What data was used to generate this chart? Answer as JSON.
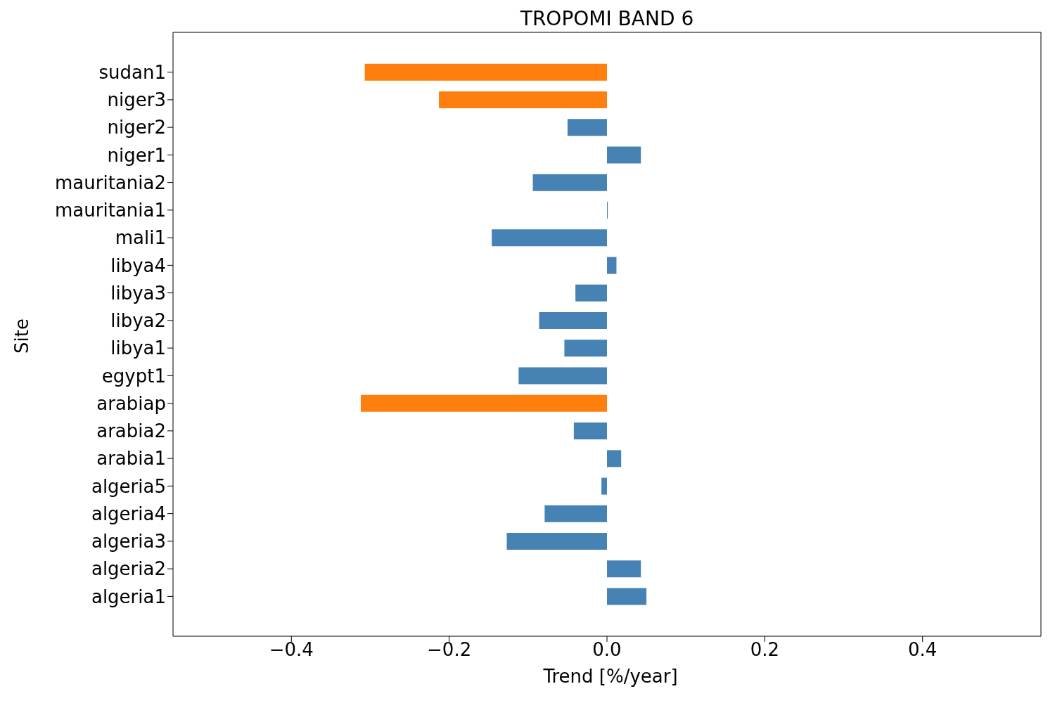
{
  "chart_data": {
    "type": "bar",
    "orientation": "horizontal",
    "title": "TROPOMI BAND 6",
    "xlabel": "Trend [%/year]",
    "ylabel": "Site",
    "categories": [
      "sudan1",
      "niger3",
      "niger2",
      "niger1",
      "mauritania2",
      "mauritania1",
      "mali1",
      "libya4",
      "libya3",
      "libya2",
      "libya1",
      "egypt1",
      "arabiap",
      "arabia2",
      "arabia1",
      "algeria5",
      "algeria4",
      "algeria3",
      "algeria2",
      "algeria1"
    ],
    "values": [
      -0.307,
      -0.213,
      -0.05,
      0.043,
      -0.094,
      0.001,
      -0.146,
      0.012,
      -0.04,
      -0.086,
      -0.054,
      -0.112,
      -0.312,
      -0.042,
      0.018,
      -0.007,
      -0.079,
      -0.127,
      0.043,
      0.05
    ],
    "colors": [
      "#ff7f0e",
      "#ff7f0e",
      "#4682b4",
      "#4682b4",
      "#4682b4",
      "#4682b4",
      "#4682b4",
      "#4682b4",
      "#4682b4",
      "#4682b4",
      "#4682b4",
      "#4682b4",
      "#ff7f0e",
      "#4682b4",
      "#4682b4",
      "#4682b4",
      "#4682b4",
      "#4682b4",
      "#4682b4",
      "#4682b4"
    ],
    "xlim": [
      -0.55,
      0.55
    ],
    "xticks": [
      {
        "value": -0.4,
        "label": "−0.4"
      },
      {
        "value": -0.2,
        "label": "−0.2"
      },
      {
        "value": 0,
        "label": "0.0"
      },
      {
        "value": 0.2,
        "label": "0.2"
      },
      {
        "value": 0.4,
        "label": "0.4"
      }
    ],
    "grid": false,
    "legend": false
  }
}
